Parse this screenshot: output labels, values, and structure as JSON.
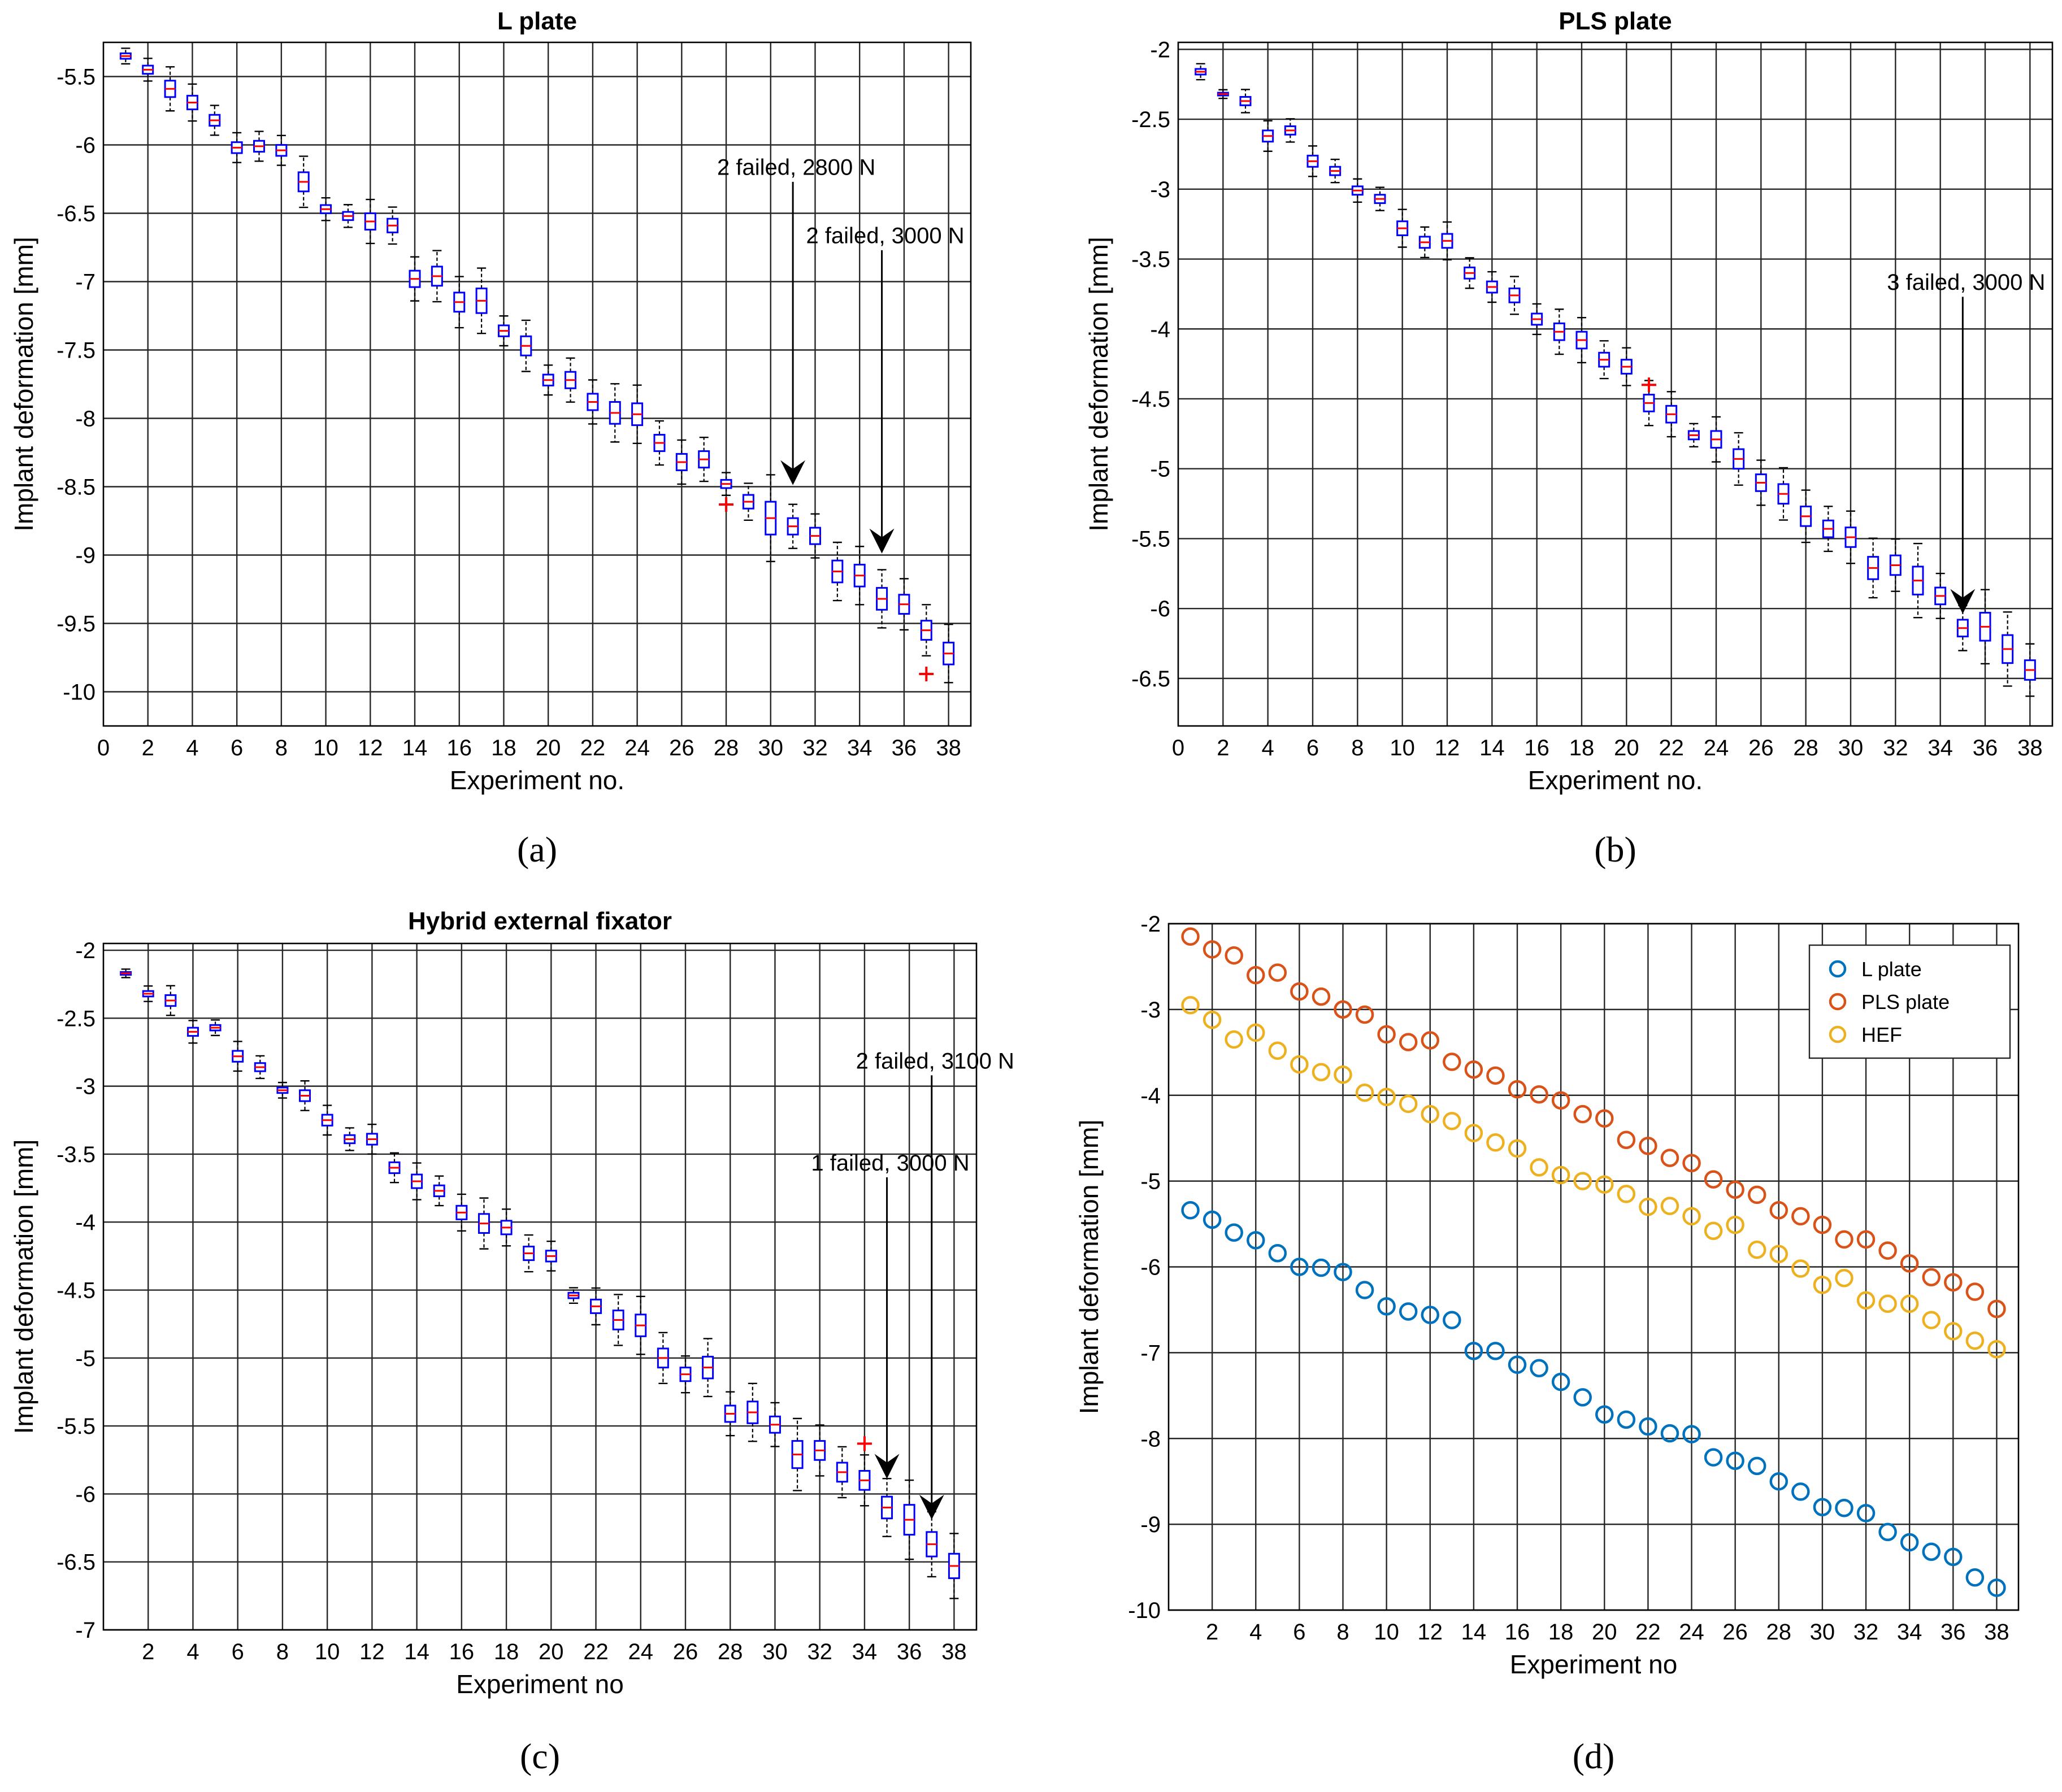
{
  "chart_data": [
    {
      "id": "a",
      "type": "box",
      "title": "L plate",
      "xlabel": "Experiment no.",
      "ylabel": "Implant deformation [mm]",
      "panel_label": "(a)",
      "xlim": [
        0,
        39
      ],
      "ylim": [
        -10.25,
        -5.25
      ],
      "xticks": [
        0,
        2,
        4,
        6,
        8,
        10,
        12,
        14,
        16,
        18,
        20,
        22,
        24,
        26,
        28,
        30,
        32,
        34,
        36,
        38
      ],
      "yticks": [
        -10,
        -9.5,
        -9,
        -8.5,
        -8,
        -7.5,
        -7,
        -6.5,
        -6,
        -5.5
      ],
      "ytick_labels": [
        "-10",
        "-9.5",
        "-9",
        "-8.5",
        "-8",
        "-7.5",
        "-7",
        "-6.5",
        "-6",
        "-5.5"
      ],
      "medians": [
        -5.35,
        -5.45,
        -5.59,
        -5.69,
        -5.82,
        -6.02,
        -6.01,
        -6.04,
        -6.27,
        -6.47,
        -6.52,
        -6.56,
        -6.59,
        -6.98,
        -6.96,
        -7.15,
        -7.14,
        -7.36,
        -7.47,
        -7.72,
        -7.72,
        -7.88,
        -7.96,
        -7.97,
        -8.18,
        -8.32,
        -8.3,
        -8.48,
        -8.61,
        -8.73,
        -8.79,
        -8.86,
        -9.12,
        -9.15,
        -9.32,
        -9.36,
        -9.55,
        -9.72
      ],
      "spread": [
        0.02,
        0.03,
        0.06,
        0.05,
        0.04,
        0.04,
        0.04,
        0.04,
        0.07,
        0.03,
        0.03,
        0.06,
        0.05,
        0.06,
        0.07,
        0.07,
        0.09,
        0.04,
        0.07,
        0.04,
        0.06,
        0.06,
        0.08,
        0.08,
        0.06,
        0.06,
        0.06,
        0.03,
        0.05,
        0.12,
        0.06,
        0.06,
        0.08,
        0.08,
        0.08,
        0.07,
        0.07,
        0.08
      ],
      "outliers": [
        {
          "x": 28,
          "y": -8.63
        },
        {
          "x": 37,
          "y": -9.87
        }
      ],
      "annotations": [
        {
          "text": "2  failed, 2800 N",
          "x": 31,
          "y_text": -6.22,
          "y_top": -6.27,
          "y_tip": -8.47
        },
        {
          "text": "2  failed, 3000 N",
          "x": 35,
          "y_text": -6.72,
          "y_top": -6.77,
          "y_tip": -8.97
        }
      ]
    },
    {
      "id": "b",
      "type": "box",
      "title": "PLS plate",
      "xlabel": "Experiment no.",
      "ylabel": "Implant deformation [mm]",
      "panel_label": "(b)",
      "xlim": [
        0,
        39
      ],
      "ylim": [
        -6.84,
        -1.95
      ],
      "xticks": [
        0,
        2,
        4,
        6,
        8,
        10,
        12,
        14,
        16,
        18,
        20,
        22,
        24,
        26,
        28,
        30,
        32,
        34,
        36,
        38
      ],
      "yticks": [
        -6.5,
        -6,
        -5.5,
        -5,
        -4.5,
        -4,
        -3.5,
        -3,
        -2.5,
        -2
      ],
      "ytick_labels": [
        "-6.5",
        "-6",
        "-5.5",
        "-5",
        "-4.5",
        "-4",
        "-3.5",
        "-3",
        "-2.5",
        "-2"
      ],
      "medians": [
        -2.16,
        -2.32,
        -2.37,
        -2.62,
        -2.58,
        -2.8,
        -2.87,
        -3.01,
        -3.07,
        -3.28,
        -3.38,
        -3.37,
        -3.6,
        -3.7,
        -3.76,
        -3.93,
        -4.02,
        -4.08,
        -4.22,
        -4.27,
        -4.53,
        -4.61,
        -4.76,
        -4.79,
        -4.93,
        -5.1,
        -5.18,
        -5.34,
        -5.43,
        -5.49,
        -5.71,
        -5.69,
        -5.8,
        -5.91,
        -6.14,
        -6.13,
        -6.29,
        -6.44
      ],
      "spread": [
        0.02,
        0.01,
        0.03,
        0.04,
        0.03,
        0.04,
        0.03,
        0.03,
        0.03,
        0.05,
        0.04,
        0.05,
        0.04,
        0.04,
        0.05,
        0.04,
        0.06,
        0.06,
        0.05,
        0.05,
        0.06,
        0.06,
        0.03,
        0.06,
        0.07,
        0.06,
        0.07,
        0.07,
        0.06,
        0.07,
        0.08,
        0.07,
        0.1,
        0.06,
        0.06,
        0.1,
        0.1,
        0.07
      ],
      "outliers": [
        {
          "x": 21,
          "y": -4.4
        }
      ],
      "annotations": [
        {
          "text": "3  failed, 3000 N",
          "x": 35,
          "y_text": -3.72,
          "y_top": -3.77,
          "y_tip": -6.02
        }
      ]
    },
    {
      "id": "c",
      "type": "box",
      "title": "Hybrid external fixator",
      "xlabel": "Experiment no",
      "ylabel": "Implant deformation [mm]",
      "panel_label": "(c)",
      "xlim": [
        0,
        39
      ],
      "ylim": [
        -7.0,
        -1.95
      ],
      "xticks": [
        2,
        4,
        6,
        8,
        10,
        12,
        14,
        16,
        18,
        20,
        22,
        24,
        26,
        28,
        30,
        32,
        34,
        36,
        38
      ],
      "yticks": [
        -7,
        -6.5,
        -6,
        -5.5,
        -5,
        -4.5,
        -4,
        -3.5,
        -3,
        -2.5,
        -2
      ],
      "ytick_labels": [
        "-7",
        "-6.5",
        "-6",
        "-5.5",
        "-5",
        "-4.5",
        "-4",
        "-3.5",
        "-3",
        "-2.5",
        "-2"
      ],
      "medians": [
        -2.17,
        -2.32,
        -2.37,
        -2.6,
        -2.57,
        -2.78,
        -2.86,
        -3.03,
        -3.07,
        -3.25,
        -3.39,
        -3.39,
        -3.6,
        -3.7,
        -3.77,
        -3.93,
        -4.01,
        -4.04,
        -4.23,
        -4.25,
        -4.54,
        -4.62,
        -4.72,
        -4.76,
        -5.0,
        -5.12,
        -5.07,
        -5.41,
        -5.4,
        -5.49,
        -5.71,
        -5.68,
        -5.84,
        -5.9,
        -6.1,
        -6.19,
        -6.37,
        -6.53
      ],
      "spread": [
        0.01,
        0.02,
        0.04,
        0.03,
        0.02,
        0.04,
        0.03,
        0.02,
        0.04,
        0.04,
        0.03,
        0.04,
        0.04,
        0.05,
        0.04,
        0.05,
        0.07,
        0.05,
        0.05,
        0.04,
        0.02,
        0.05,
        0.07,
        0.08,
        0.07,
        0.05,
        0.08,
        0.06,
        0.08,
        0.06,
        0.1,
        0.07,
        0.07,
        0.07,
        0.08,
        0.11,
        0.09,
        0.09
      ],
      "outliers": [
        {
          "x": 34,
          "y": -5.63
        }
      ],
      "annotations": [
        {
          "text": "2  failed, 3100 N",
          "x": 37,
          "y_text": -2.87,
          "y_top": -2.92,
          "y_tip": -6.17
        },
        {
          "text": "1  failed, 3000 N",
          "x": 35,
          "y_text": -3.62,
          "y_top": -3.67,
          "y_tip": -5.87
        }
      ]
    },
    {
      "id": "d",
      "type": "scatter",
      "title": "",
      "xlabel": "Experiment no",
      "ylabel": "Implant deformation [mm]",
      "panel_label": "(d)",
      "xlim": [
        0,
        39
      ],
      "ylim": [
        -10,
        -2
      ],
      "xticks": [
        2,
        4,
        6,
        8,
        10,
        12,
        14,
        16,
        18,
        20,
        22,
        24,
        26,
        28,
        30,
        32,
        34,
        36,
        38
      ],
      "yticks": [
        -10,
        -9,
        -8,
        -7,
        -6,
        -5,
        -4,
        -3,
        -2
      ],
      "ytick_labels": [
        "-10",
        "-9",
        "-8",
        "-7",
        "-6",
        "-5",
        "-4",
        "-3",
        "-2"
      ],
      "legend_position": "top-right",
      "series": [
        {
          "name": "L plate",
          "color": "#0072bd",
          "values": [
            -5.34,
            -5.45,
            -5.6,
            -5.69,
            -5.84,
            -6.0,
            -6.01,
            -6.06,
            -6.27,
            -6.46,
            -6.52,
            -6.56,
            -6.62,
            -6.98,
            -6.98,
            -7.14,
            -7.18,
            -7.34,
            -7.52,
            -7.72,
            -7.78,
            -7.86,
            -7.94,
            -7.95,
            -8.22,
            -8.26,
            -8.32,
            -8.5,
            -8.62,
            -8.8,
            -8.81,
            -8.87,
            -9.09,
            -9.21,
            -9.32,
            -9.38,
            -9.62,
            -9.74
          ]
        },
        {
          "name": "PLS plate",
          "color": "#d95319",
          "values": [
            -2.15,
            -2.3,
            -2.37,
            -2.6,
            -2.57,
            -2.79,
            -2.85,
            -3.0,
            -3.06,
            -3.29,
            -3.38,
            -3.36,
            -3.61,
            -3.7,
            -3.77,
            -3.93,
            -3.99,
            -4.06,
            -4.22,
            -4.27,
            -4.52,
            -4.59,
            -4.73,
            -4.79,
            -4.98,
            -5.1,
            -5.16,
            -5.34,
            -5.41,
            -5.51,
            -5.68,
            -5.68,
            -5.81,
            -5.96,
            -6.12,
            -6.18,
            -6.29,
            -6.49
          ]
        },
        {
          "name": "HEF",
          "color": "#edb120",
          "values": [
            -2.95,
            -3.12,
            -3.35,
            -3.27,
            -3.48,
            -3.64,
            -3.73,
            -3.76,
            -3.97,
            -4.02,
            -4.1,
            -4.22,
            -4.3,
            -4.44,
            -4.55,
            -4.62,
            -4.84,
            -4.93,
            -5.0,
            -5.04,
            -5.15,
            -5.3,
            -5.29,
            -5.41,
            -5.58,
            -5.51,
            -5.8,
            -5.85,
            -6.02,
            -6.21,
            -6.13,
            -6.39,
            -6.43,
            -6.43,
            -6.62,
            -6.75,
            -6.86,
            -6.96
          ]
        }
      ]
    }
  ]
}
